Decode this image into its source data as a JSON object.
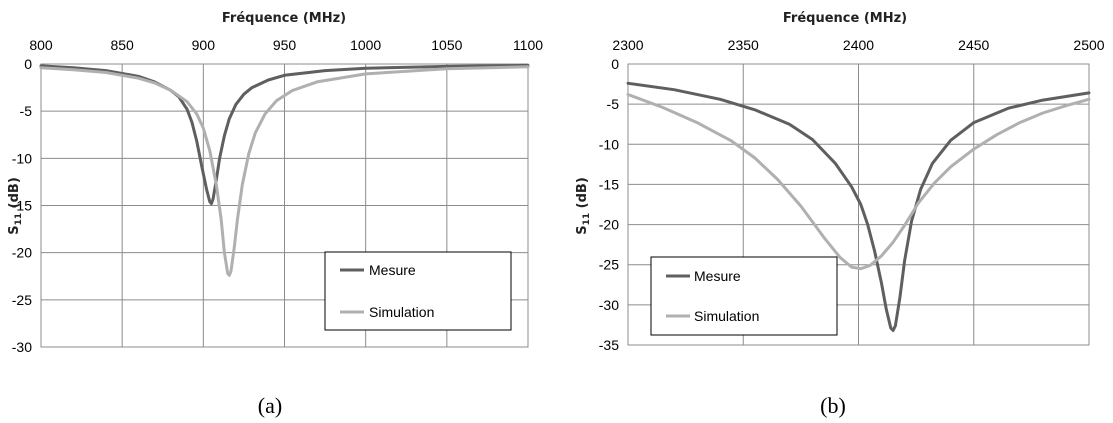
{
  "colors": {
    "mesure": "#5f5f5f",
    "simulation": "#b0b0b0",
    "grid": "#8c8c8c",
    "frame": "#8c8c8c"
  },
  "chart_data": [
    {
      "type": "line",
      "caption": "(a)",
      "xlabel": "Fréquence (MHz)",
      "ylabel_main": "S",
      "ylabel_sub": "11",
      "ylabel_unit": " (dB)",
      "xlim": [
        800,
        1100
      ],
      "ylim": [
        -30,
        0
      ],
      "x_ticks": [
        800,
        850,
        900,
        950,
        1000,
        1050,
        1100
      ],
      "y_ticks": [
        0,
        -5,
        -10,
        -15,
        -20,
        -25,
        -30
      ],
      "x_axis_position": "top",
      "grid": true,
      "legend_position": "bottom-right",
      "series": [
        {
          "name": "Mesure",
          "color_key": "mesure",
          "points": [
            [
              800,
              -0.2
            ],
            [
              820,
              -0.4
            ],
            [
              840,
              -0.7
            ],
            [
              860,
              -1.3
            ],
            [
              870,
              -1.9
            ],
            [
              880,
              -2.8
            ],
            [
              885,
              -3.5
            ],
            [
              890,
              -4.8
            ],
            [
              893,
              -6.2
            ],
            [
              896,
              -8.2
            ],
            [
              899,
              -10.8
            ],
            [
              902,
              -13.3
            ],
            [
              904,
              -14.6
            ],
            [
              905,
              -14.8
            ],
            [
              906,
              -14.3
            ],
            [
              908,
              -12.3
            ],
            [
              910,
              -10.0
            ],
            [
              913,
              -7.6
            ],
            [
              916,
              -5.8
            ],
            [
              920,
              -4.3
            ],
            [
              925,
              -3.2
            ],
            [
              930,
              -2.5
            ],
            [
              940,
              -1.7
            ],
            [
              950,
              -1.2
            ],
            [
              975,
              -0.7
            ],
            [
              1000,
              -0.45
            ],
            [
              1050,
              -0.25
            ],
            [
              1100,
              -0.15
            ]
          ]
        },
        {
          "name": "Simulation",
          "color_key": "simulation",
          "points": [
            [
              800,
              -0.4
            ],
            [
              820,
              -0.6
            ],
            [
              840,
              -0.9
            ],
            [
              860,
              -1.5
            ],
            [
              870,
              -2.0
            ],
            [
              880,
              -2.8
            ],
            [
              890,
              -4.0
            ],
            [
              896,
              -5.3
            ],
            [
              900,
              -6.8
            ],
            [
              904,
              -9.2
            ],
            [
              908,
              -12.8
            ],
            [
              911,
              -16.5
            ],
            [
              913,
              -20.0
            ],
            [
              915,
              -22.2
            ],
            [
              916,
              -22.4
            ],
            [
              917,
              -22.0
            ],
            [
              919,
              -19.5
            ],
            [
              921,
              -16.5
            ],
            [
              924,
              -12.8
            ],
            [
              928,
              -9.5
            ],
            [
              932,
              -7.3
            ],
            [
              938,
              -5.3
            ],
            [
              945,
              -3.9
            ],
            [
              955,
              -2.8
            ],
            [
              970,
              -1.9
            ],
            [
              1000,
              -1.05
            ],
            [
              1050,
              -0.5
            ],
            [
              1100,
              -0.3
            ]
          ]
        }
      ],
      "legend": [
        "Mesure",
        "Simulation"
      ]
    },
    {
      "type": "line",
      "caption": "(b)",
      "xlabel": "Fréquence (MHz)",
      "ylabel_main": "S",
      "ylabel_sub": "11",
      "ylabel_unit": " (dB)",
      "xlim": [
        2300,
        2500
      ],
      "ylim": [
        -35,
        0
      ],
      "x_ticks": [
        2300,
        2350,
        2400,
        2450,
        2500
      ],
      "y_ticks": [
        0,
        -5,
        -10,
        -15,
        -20,
        -25,
        -30,
        -35
      ],
      "x_axis_position": "top",
      "grid": true,
      "legend_position": "bottom-left",
      "series": [
        {
          "name": "Mesure",
          "color_key": "mesure",
          "points": [
            [
              2300,
              -2.4
            ],
            [
              2320,
              -3.2
            ],
            [
              2340,
              -4.4
            ],
            [
              2355,
              -5.7
            ],
            [
              2370,
              -7.5
            ],
            [
              2380,
              -9.4
            ],
            [
              2390,
              -12.4
            ],
            [
              2397,
              -15.3
            ],
            [
              2401,
              -17.5
            ],
            [
              2404,
              -20.0
            ],
            [
              2407,
              -23.3
            ],
            [
              2410,
              -27.3
            ],
            [
              2412,
              -30.5
            ],
            [
              2414,
              -32.9
            ],
            [
              2415,
              -33.2
            ],
            [
              2416,
              -32.6
            ],
            [
              2418,
              -29.0
            ],
            [
              2420,
              -24.5
            ],
            [
              2423,
              -19.6
            ],
            [
              2427,
              -15.6
            ],
            [
              2432,
              -12.4
            ],
            [
              2440,
              -9.5
            ],
            [
              2450,
              -7.3
            ],
            [
              2465,
              -5.5
            ],
            [
              2480,
              -4.5
            ],
            [
              2500,
              -3.6
            ]
          ]
        },
        {
          "name": "Simulation",
          "color_key": "simulation",
          "points": [
            [
              2300,
              -3.8
            ],
            [
              2315,
              -5.4
            ],
            [
              2330,
              -7.3
            ],
            [
              2345,
              -9.6
            ],
            [
              2355,
              -11.7
            ],
            [
              2365,
              -14.4
            ],
            [
              2375,
              -17.7
            ],
            [
              2385,
              -21.6
            ],
            [
              2392,
              -24.1
            ],
            [
              2397,
              -25.3
            ],
            [
              2401,
              -25.5
            ],
            [
              2405,
              -25.1
            ],
            [
              2410,
              -23.9
            ],
            [
              2415,
              -22.2
            ],
            [
              2420,
              -20.1
            ],
            [
              2426,
              -17.3
            ],
            [
              2433,
              -14.8
            ],
            [
              2440,
              -12.8
            ],
            [
              2450,
              -10.6
            ],
            [
              2460,
              -8.8
            ],
            [
              2470,
              -7.3
            ],
            [
              2480,
              -6.1
            ],
            [
              2490,
              -5.2
            ],
            [
              2500,
              -4.4
            ]
          ]
        }
      ],
      "legend": [
        "Mesure",
        "Simulation"
      ]
    }
  ]
}
